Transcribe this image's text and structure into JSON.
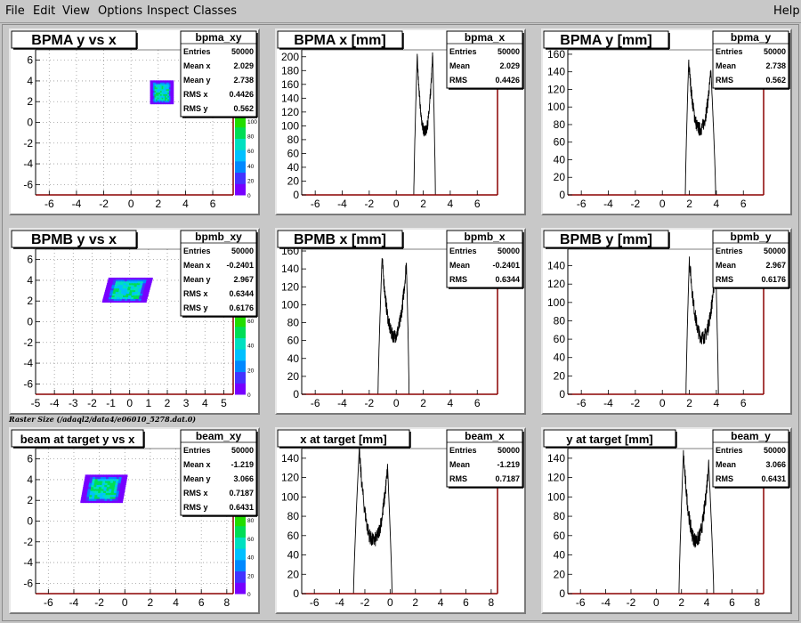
{
  "menu": {
    "file": "File",
    "edit": "Edit",
    "view": "View",
    "options": "Options",
    "inspect": "Inspect",
    "classes": "Classes",
    "help": "Help"
  },
  "footnote": "Raster Size (/adaql2/data4/e06010_5278.dat.0)",
  "colors": {
    "canvas_bg": "#c8c8c8",
    "pad_bg": "#ffffff",
    "axis_frame": "#8b0000",
    "histogram_line": "#000000",
    "palette": [
      "#7700ff",
      "#4433ff",
      "#0088ff",
      "#00c0ff",
      "#00e0c0",
      "#00dd55",
      "#22dd00"
    ]
  },
  "chart_data": [
    {
      "id": "bpma_xy",
      "type": "heatmap",
      "title": "BPMA y vs x",
      "xlim": [
        -7,
        7.5
      ],
      "ylim": [
        -7,
        7
      ],
      "xticks": [
        -6,
        -4,
        -2,
        0,
        2,
        4,
        6
      ],
      "yticks": [
        -6,
        -4,
        -2,
        0,
        2,
        4,
        6
      ],
      "grid": true,
      "stats": {
        "name": "bpma_xy",
        "rows": [
          [
            "Entries",
            "50000"
          ],
          [
            "Mean x",
            "2.029"
          ],
          [
            "Mean y",
            "2.738"
          ],
          [
            "RMS x",
            "0.4426"
          ],
          [
            "RMS y",
            "0.562"
          ]
        ]
      },
      "blob": {
        "x": [
          1.4,
          3.0
        ],
        "y": [
          1.8,
          3.9
        ],
        "skew": 0
      },
      "palette_ticks": [
        "100",
        "80",
        "60",
        "40",
        "20",
        "0"
      ],
      "palette_tick_note": "partially hidden by stats box"
    },
    {
      "id": "bpma_x",
      "type": "line",
      "title": "BPMA x [mm]",
      "xlim": [
        -7,
        7.5
      ],
      "ylim": [
        0,
        210
      ],
      "xticks": [
        -6,
        -4,
        -2,
        0,
        2,
        4,
        6
      ],
      "yticks": [
        0,
        20,
        40,
        60,
        80,
        100,
        120,
        140,
        160,
        180,
        200
      ],
      "grid": false,
      "stats": {
        "name": "bpma_x",
        "rows": [
          [
            "Entries",
            "50000"
          ],
          [
            "Mean",
            "2.029"
          ],
          [
            "RMS",
            "0.4426"
          ]
        ]
      },
      "shape": {
        "lo": 1.3,
        "hi": 2.9,
        "peak1": 200,
        "peak2": 205,
        "floor": 92,
        "a": 1.55,
        "b": 2.7
      }
    },
    {
      "id": "bpma_y",
      "type": "line",
      "title": "BPMA y [mm]",
      "xlim": [
        -7,
        7.5
      ],
      "ylim": [
        0,
        165
      ],
      "xticks": [
        -6,
        -4,
        -2,
        0,
        2,
        4,
        6
      ],
      "yticks": [
        0,
        20,
        40,
        60,
        80,
        100,
        120,
        140,
        160
      ],
      "grid": false,
      "stats": {
        "name": "bpma_y",
        "rows": [
          [
            "Entries",
            "50000"
          ],
          [
            "Mean",
            "2.738"
          ],
          [
            "RMS",
            "0.562"
          ]
        ]
      },
      "shape": {
        "lo": 1.7,
        "hi": 3.95,
        "peak1": 152,
        "peak2": 140,
        "floor": 75,
        "a": 1.95,
        "b": 3.6
      }
    },
    {
      "id": "bpmb_xy",
      "type": "heatmap",
      "title": "BPMB y vs x",
      "xlim": [
        -5,
        5.5
      ],
      "ylim": [
        -7,
        7
      ],
      "xticks": [
        -5,
        -4,
        -3,
        -2,
        -1,
        0,
        1,
        2,
        3,
        4,
        5
      ],
      "yticks": [
        -6,
        -4,
        -2,
        0,
        2,
        4,
        6
      ],
      "grid": true,
      "stats": {
        "name": "bpmb_xy",
        "rows": [
          [
            "Entries",
            "50000"
          ],
          [
            "Mean x",
            "-0.2401"
          ],
          [
            "Mean y",
            "2.967"
          ],
          [
            "RMS x",
            "0.6344"
          ],
          [
            "RMS y",
            "0.6176"
          ]
        ]
      },
      "blob": {
        "x": [
          -1.3,
          0.9
        ],
        "y": [
          1.9,
          4.1
        ],
        "skew": 0.15
      },
      "palette_ticks": [
        "60",
        "40",
        "20",
        "0"
      ],
      "palette_tick_note": "partially hidden by stats box"
    },
    {
      "id": "bpmb_x",
      "type": "line",
      "title": "BPMB x [mm]",
      "xlim": [
        -7,
        7.5
      ],
      "ylim": [
        0,
        162
      ],
      "xticks": [
        -6,
        -4,
        -2,
        0,
        2,
        4,
        6
      ],
      "yticks": [
        0,
        20,
        40,
        60,
        80,
        100,
        120,
        140,
        160
      ],
      "grid": false,
      "stats": {
        "name": "bpmb_x",
        "rows": [
          [
            "Entries",
            "50000"
          ],
          [
            "Mean",
            "-0.2401"
          ],
          [
            "RMS",
            "0.6344"
          ]
        ]
      },
      "shape": {
        "lo": -1.35,
        "hi": 0.95,
        "peak1": 152,
        "peak2": 147,
        "floor": 65,
        "a": -1.05,
        "b": 0.75
      }
    },
    {
      "id": "bpmb_y",
      "type": "line",
      "title": "BPMB y [mm]",
      "xlim": [
        -7,
        7.5
      ],
      "ylim": [
        0,
        158
      ],
      "xticks": [
        -6,
        -4,
        -2,
        0,
        2,
        4,
        6
      ],
      "yticks": [
        0,
        20,
        40,
        60,
        80,
        100,
        120,
        140
      ],
      "grid": false,
      "stats": {
        "name": "bpmb_y",
        "rows": [
          [
            "Entries",
            "50000"
          ],
          [
            "Mean",
            "2.967"
          ],
          [
            "RMS",
            "0.6176"
          ]
        ]
      },
      "shape": {
        "lo": 1.75,
        "hi": 4.15,
        "peak1": 148,
        "peak2": 140,
        "floor": 62,
        "a": 2.0,
        "b": 3.95
      }
    },
    {
      "id": "beam_xy",
      "type": "heatmap",
      "title": "beam at target y vs x",
      "xlim": [
        -7,
        8.5
      ],
      "ylim": [
        -7,
        7
      ],
      "xticks": [
        -6,
        -4,
        -2,
        0,
        2,
        4,
        6,
        8
      ],
      "yticks": [
        -6,
        -4,
        -2,
        0,
        2,
        4,
        6
      ],
      "grid": true,
      "stats": {
        "name": "beam_xy",
        "rows": [
          [
            "Entries",
            "50000"
          ],
          [
            "Mean x",
            "-1.219"
          ],
          [
            "Mean y",
            "3.066"
          ],
          [
            "RMS x",
            "0.7187"
          ],
          [
            "RMS y",
            "0.6431"
          ]
        ]
      },
      "blob": {
        "x": [
          -3.3,
          -0.2
        ],
        "y": [
          1.8,
          4.3
        ],
        "skew": 0.12
      },
      "palette_ticks": [
        "80",
        "60",
        "40",
        "20",
        "0"
      ],
      "palette_tick_note": "partially hidden by stats box"
    },
    {
      "id": "beam_x",
      "type": "line",
      "title": "x at target [mm]",
      "xlim": [
        -7,
        8.5
      ],
      "ylim": [
        0,
        150
      ],
      "xticks": [
        -6,
        -4,
        -2,
        0,
        2,
        4,
        6,
        8
      ],
      "yticks": [
        0,
        20,
        40,
        60,
        80,
        100,
        120,
        140
      ],
      "grid": false,
      "stats": {
        "name": "beam_x",
        "rows": [
          [
            "Entries",
            "50000"
          ],
          [
            "Mean",
            "-1.219"
          ],
          [
            "RMS",
            "0.7187"
          ]
        ]
      },
      "shape": {
        "lo": -2.9,
        "hi": 0.15,
        "peak1": 148,
        "peak2": 130,
        "floor": 55,
        "a": -2.45,
        "b": -0.2
      }
    },
    {
      "id": "beam_y",
      "type": "line",
      "title": "y at target [mm]",
      "xlim": [
        -7,
        8.5
      ],
      "ylim": [
        0,
        150
      ],
      "xticks": [
        -6,
        -4,
        -2,
        0,
        2,
        4,
        6,
        8
      ],
      "yticks": [
        0,
        20,
        40,
        60,
        80,
        100,
        120,
        140
      ],
      "grid": false,
      "stats": {
        "name": "beam_y",
        "rows": [
          [
            "Entries",
            "50000"
          ],
          [
            "Mean",
            "3.066"
          ],
          [
            "RMS",
            "0.6431"
          ]
        ]
      },
      "shape": {
        "lo": 1.8,
        "hi": 4.55,
        "peak1": 145,
        "peak2": 135,
        "floor": 55,
        "a": 2.15,
        "b": 4.15
      }
    }
  ]
}
